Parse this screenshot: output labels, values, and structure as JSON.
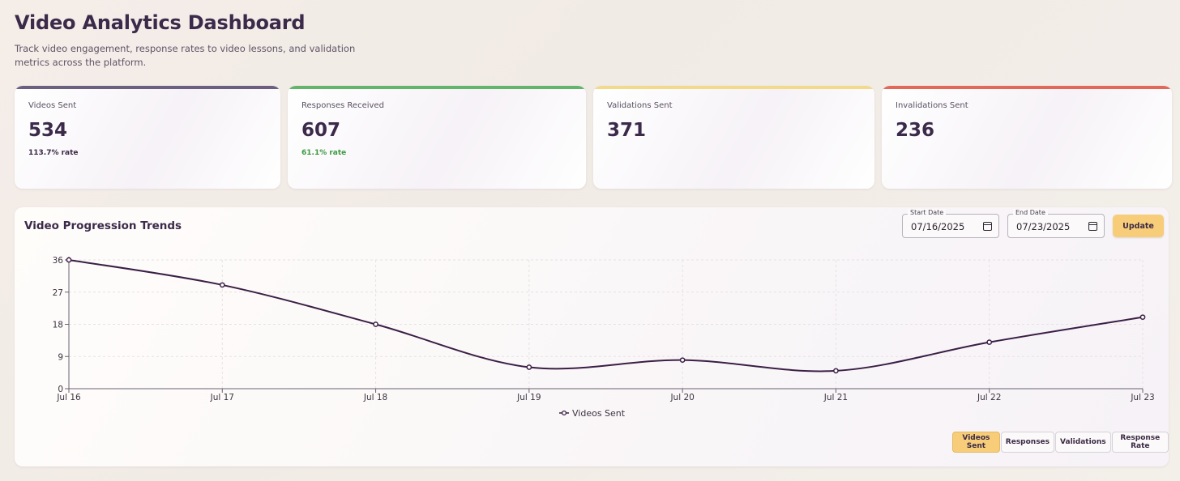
{
  "header": {
    "title": "Video Analytics Dashboard",
    "subtitle": "Track video engagement, response rates to video lessons, and validation metrics across the platform."
  },
  "stats": [
    {
      "label": "Videos Sent",
      "value": "534",
      "rate": "113.7% rate",
      "accent": "#6b6080",
      "rate_color": "#3b2a44"
    },
    {
      "label": "Responses Received",
      "value": "607",
      "rate": "61.1% rate",
      "accent": "#62b56a",
      "rate_color": "#3c9a40"
    },
    {
      "label": "Validations Sent",
      "value": "371",
      "rate": "",
      "accent": "#f3d98a",
      "rate_color": "#3b2a44"
    },
    {
      "label": "Invalidations Sent",
      "value": "236",
      "rate": "",
      "accent": "#e2685a",
      "rate_color": "#3b2a44"
    }
  ],
  "chart_panel": {
    "title": "Video Progression Trends",
    "start_date": {
      "label": "Start Date",
      "value": "07/16/2025"
    },
    "end_date": {
      "label": "End Date",
      "value": "07/23/2025"
    },
    "update_label": "Update",
    "toggles": [
      {
        "label": "Videos Sent",
        "active": true
      },
      {
        "label": "Responses",
        "active": false
      },
      {
        "label": "Validations",
        "active": false
      },
      {
        "label": "Response Rate",
        "active": false
      }
    ]
  },
  "chart_data": {
    "type": "line",
    "categories": [
      "Jul 16",
      "Jul 17",
      "Jul 18",
      "Jul 19",
      "Jul 20",
      "Jul 21",
      "Jul 22",
      "Jul 23"
    ],
    "series": [
      {
        "name": "Videos Sent",
        "values": [
          36,
          29,
          18,
          6,
          8,
          5,
          13,
          20
        ],
        "color": "#3b1f45"
      }
    ],
    "y_ticks": [
      0,
      9,
      18,
      27,
      36
    ],
    "ylim": [
      0,
      36
    ],
    "grid": true,
    "legend": "bottom-center"
  }
}
